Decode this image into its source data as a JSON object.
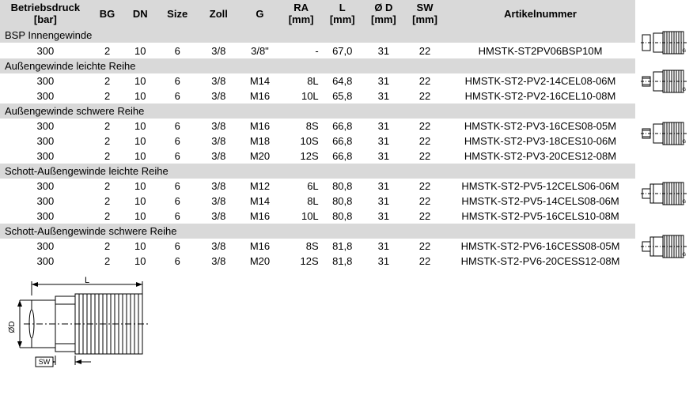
{
  "headers": {
    "betriebsdruck": "Betriebsdruck",
    "betriebsdruck_unit": "[bar]",
    "bg": "BG",
    "dn": "DN",
    "size": "Size",
    "zoll": "Zoll",
    "g": "G",
    "ra": "RA",
    "ra_unit": "[mm]",
    "l": "L",
    "l_unit": "[mm]",
    "d": "Ø D",
    "d_unit": "[mm]",
    "sw": "SW",
    "sw_unit": "[mm]",
    "art": "Artikelnummer"
  },
  "categories": [
    {
      "title": "BSP Innengewinde",
      "thumb": "a",
      "rows": [
        {
          "bd": "300",
          "bg": "2",
          "dn": "10",
          "size": "6",
          "zoll": "3/8",
          "g": "3/8\"",
          "ra": "-",
          "l": "67,0",
          "d": "31",
          "sw": "22",
          "art": "HMSTK-ST2PV06BSP10M"
        }
      ]
    },
    {
      "title": "Außengewinde leichte Reihe",
      "thumb": "b",
      "rows": [
        {
          "bd": "300",
          "bg": "2",
          "dn": "10",
          "size": "6",
          "zoll": "3/8",
          "g": "M14",
          "ra": "8L",
          "l": "64,8",
          "d": "31",
          "sw": "22",
          "art": "HMSTK-ST2-PV2-14CEL08-06M"
        },
        {
          "bd": "300",
          "bg": "2",
          "dn": "10",
          "size": "6",
          "zoll": "3/8",
          "g": "M16",
          "ra": "10L",
          "l": "65,8",
          "d": "31",
          "sw": "22",
          "art": "HMSTK-ST2-PV2-16CEL10-08M"
        }
      ]
    },
    {
      "title": "Außengewinde schwere Reihe",
      "thumb": "b",
      "rows": [
        {
          "bd": "300",
          "bg": "2",
          "dn": "10",
          "size": "6",
          "zoll": "3/8",
          "g": "M16",
          "ra": "8S",
          "l": "66,8",
          "d": "31",
          "sw": "22",
          "art": "HMSTK-ST2-PV3-16CES08-05M"
        },
        {
          "bd": "300",
          "bg": "2",
          "dn": "10",
          "size": "6",
          "zoll": "3/8",
          "g": "M18",
          "ra": "10S",
          "l": "66,8",
          "d": "31",
          "sw": "22",
          "art": "HMSTK-ST2-PV3-18CES10-06M"
        },
        {
          "bd": "300",
          "bg": "2",
          "dn": "10",
          "size": "6",
          "zoll": "3/8",
          "g": "M20",
          "ra": "12S",
          "l": "66,8",
          "d": "31",
          "sw": "22",
          "art": "HMSTK-ST2-PV3-20CES12-08M"
        }
      ]
    },
    {
      "title": "Schott-Außengewinde leichte Reihe",
      "thumb": "c",
      "rows": [
        {
          "bd": "300",
          "bg": "2",
          "dn": "10",
          "size": "6",
          "zoll": "3/8",
          "g": "M12",
          "ra": "6L",
          "l": "80,8",
          "d": "31",
          "sw": "22",
          "art": "HMSTK-ST2-PV5-12CELS06-06M"
        },
        {
          "bd": "300",
          "bg": "2",
          "dn": "10",
          "size": "6",
          "zoll": "3/8",
          "g": "M14",
          "ra": "8L",
          "l": "80,8",
          "d": "31",
          "sw": "22",
          "art": "HMSTK-ST2-PV5-14CELS08-06M"
        },
        {
          "bd": "300",
          "bg": "2",
          "dn": "10",
          "size": "6",
          "zoll": "3/8",
          "g": "M16",
          "ra": "10L",
          "l": "80,8",
          "d": "31",
          "sw": "22",
          "art": "HMSTK-ST2-PV5-16CELS10-08M"
        }
      ]
    },
    {
      "title": "Schott-Außengewinde schwere Reihe",
      "thumb": "c",
      "rows": [
        {
          "bd": "300",
          "bg": "2",
          "dn": "10",
          "size": "6",
          "zoll": "3/8",
          "g": "M16",
          "ra": "8S",
          "l": "81,8",
          "d": "31",
          "sw": "22",
          "art": "HMSTK-ST2-PV6-16CESS08-05M"
        },
        {
          "bd": "300",
          "bg": "2",
          "dn": "10",
          "size": "6",
          "zoll": "3/8",
          "g": "M20",
          "ra": "12S",
          "l": "81,8",
          "d": "31",
          "sw": "22",
          "art": "HMSTK-ST2-PV6-20CESS12-08M"
        }
      ]
    }
  ],
  "diagram_labels": {
    "L": "L",
    "D": "ØD",
    "SW": "SW"
  }
}
